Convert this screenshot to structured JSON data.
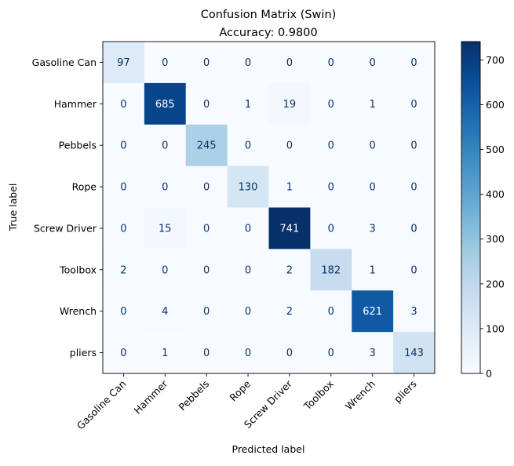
{
  "chart_data": {
    "type": "heatmap",
    "title": "Confusion Matrix (Swin)",
    "subtitle": "Accuracy: 0.9800",
    "xlabel": "Predicted label",
    "ylabel": "True label",
    "labels": [
      "Gasoline Can",
      "Hammer",
      "Pebbels",
      "Rope",
      "Screw Driver",
      "Toolbox",
      "Wrench",
      "pliers"
    ],
    "matrix": [
      [
        97,
        0,
        0,
        0,
        0,
        0,
        0,
        0
      ],
      [
        0,
        685,
        0,
        1,
        19,
        0,
        1,
        0
      ],
      [
        0,
        0,
        245,
        0,
        0,
        0,
        0,
        0
      ],
      [
        0,
        0,
        0,
        130,
        1,
        0,
        0,
        0
      ],
      [
        0,
        15,
        0,
        0,
        741,
        0,
        3,
        0
      ],
      [
        2,
        0,
        0,
        0,
        2,
        182,
        1,
        0
      ],
      [
        0,
        4,
        0,
        0,
        2,
        0,
        621,
        3
      ],
      [
        0,
        1,
        0,
        0,
        0,
        0,
        3,
        143
      ]
    ],
    "colormap": "Blues",
    "vmin": 0,
    "vmax": 741,
    "colorbar_ticks": [
      0,
      100,
      200,
      300,
      400,
      500,
      600,
      700
    ]
  }
}
